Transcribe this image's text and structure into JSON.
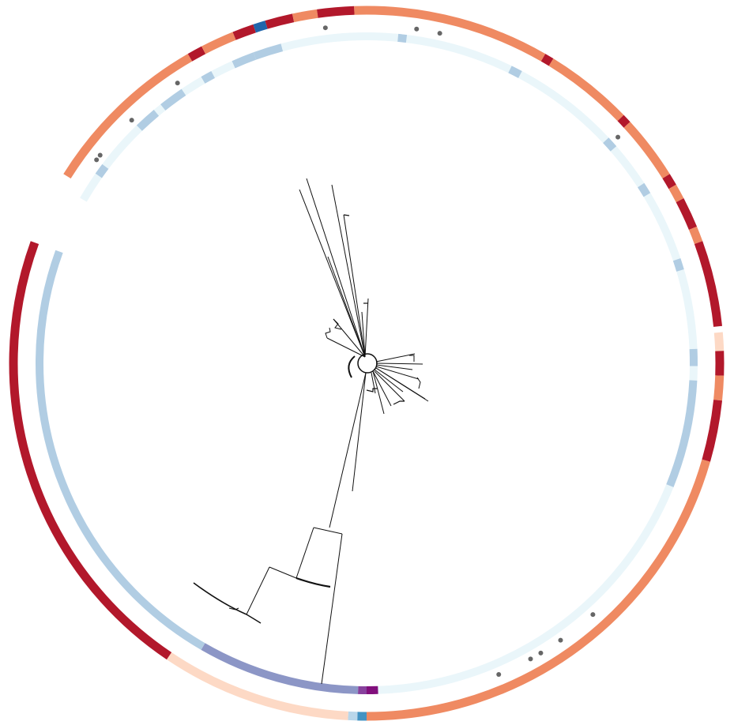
{
  "figure": {
    "type": "circular-phylogenetic-tree",
    "text_labels": [],
    "legend": null
  },
  "colors": {
    "background": "#ffffff",
    "branch": "#111111",
    "tip_marker": "#666666",
    "outer_ring_palette": {
      "light_salmon": "#fdd9c5",
      "salmon": "#ef8a62",
      "crimson": "#b2182b",
      "dark_blue": "#2166ac",
      "steel_blue": "#4393c3"
    },
    "inner_ring_palette": {
      "very_light_blue": "#eaf6fa",
      "light_blue": "#b1cde3",
      "periwinkle": "#8c96c6",
      "purple": "#88419d",
      "dark_purple": "#810f7c"
    }
  },
  "rings": {
    "outer_ring_segments": [
      {
        "start_deg": 0,
        "end_deg": 30,
        "color": "salmon"
      },
      {
        "start_deg": 30,
        "end_deg": 31.5,
        "color": "crimson"
      },
      {
        "start_deg": 31.5,
        "end_deg": 46,
        "color": "salmon"
      },
      {
        "start_deg": 46,
        "end_deg": 47.5,
        "color": "crimson"
      },
      {
        "start_deg": 47.5,
        "end_deg": 58,
        "color": "salmon"
      },
      {
        "start_deg": 58,
        "end_deg": 60,
        "color": "crimson"
      },
      {
        "start_deg": 60,
        "end_deg": 62.5,
        "color": "salmon"
      },
      {
        "start_deg": 62.5,
        "end_deg": 67.5,
        "color": "crimson"
      },
      {
        "start_deg": 67.5,
        "end_deg": 70,
        "color": "salmon"
      },
      {
        "start_deg": 70,
        "end_deg": 84,
        "color": "crimson"
      },
      {
        "start_deg": 85,
        "end_deg": 88,
        "color": "light_salmon"
      },
      {
        "start_deg": 88,
        "end_deg": 92,
        "color": "crimson"
      },
      {
        "start_deg": 92,
        "end_deg": 96,
        "color": "salmon"
      },
      {
        "start_deg": 96,
        "end_deg": 106,
        "color": "crimson"
      },
      {
        "start_deg": 106,
        "end_deg": 180,
        "color": "salmon"
      },
      {
        "start_deg": 180,
        "end_deg": 181.5,
        "color": "steel_blue"
      },
      {
        "start_deg": 181.5,
        "end_deg": 183,
        "color": "light_blue_fill"
      },
      {
        "start_deg": 183,
        "end_deg": 214,
        "color": "light_salmon"
      },
      {
        "start_deg": 214,
        "end_deg": 290,
        "color": "crimson"
      },
      {
        "start_deg": 302,
        "end_deg": 330,
        "color": "salmon"
      },
      {
        "start_deg": 330,
        "end_deg": 332.5,
        "color": "crimson"
      },
      {
        "start_deg": 332.5,
        "end_deg": 338,
        "color": "salmon"
      },
      {
        "start_deg": 338,
        "end_deg": 341.5,
        "color": "crimson"
      },
      {
        "start_deg": 341.5,
        "end_deg": 343.5,
        "color": "dark_blue"
      },
      {
        "start_deg": 343.5,
        "end_deg": 348,
        "color": "crimson"
      },
      {
        "start_deg": 348,
        "end_deg": 352,
        "color": "salmon"
      },
      {
        "start_deg": 352,
        "end_deg": 358,
        "color": "crimson"
      },
      {
        "start_deg": 358,
        "end_deg": 360,
        "color": "salmon"
      }
    ],
    "inner_ring_segments": [
      {
        "start_deg": 0,
        "end_deg": 87.5,
        "color": "very_light_blue"
      },
      {
        "start_deg": 87.5,
        "end_deg": 90.5,
        "color": "light_blue"
      },
      {
        "start_deg": 90.5,
        "end_deg": 93,
        "color": "very_light_blue"
      },
      {
        "start_deg": 93,
        "end_deg": 112,
        "color": "light_blue"
      },
      {
        "start_deg": 112,
        "end_deg": 178,
        "color": "very_light_blue"
      },
      {
        "start_deg": 178,
        "end_deg": 180,
        "color": "dark_purple"
      },
      {
        "start_deg": 180,
        "end_deg": 181.5,
        "color": "purple"
      },
      {
        "start_deg": 181.5,
        "end_deg": 210,
        "color": "periwinkle"
      },
      {
        "start_deg": 210,
        "end_deg": 290,
        "color": "light_blue"
      },
      {
        "start_deg": 300,
        "end_deg": 340,
        "color": "very_light_blue"
      },
      {
        "start_deg": 340,
        "end_deg": 345,
        "color": "light_blue"
      },
      {
        "start_deg": 345,
        "end_deg": 360,
        "color": "very_light_blue"
      }
    ],
    "inner_ring_accents": [
      {
        "start_deg": 5.5,
        "end_deg": 7,
        "color": "light_blue"
      },
      {
        "start_deg": 26,
        "end_deg": 28,
        "color": "light_blue"
      },
      {
        "start_deg": 47,
        "end_deg": 49,
        "color": "light_blue"
      },
      {
        "start_deg": 57,
        "end_deg": 59,
        "color": "light_blue"
      },
      {
        "start_deg": 71.5,
        "end_deg": 73.5,
        "color": "light_blue"
      },
      {
        "start_deg": 305,
        "end_deg": 307,
        "color": "light_blue"
      },
      {
        "start_deg": 316,
        "end_deg": 320,
        "color": "light_blue"
      },
      {
        "start_deg": 321.5,
        "end_deg": 326,
        "color": "light_blue"
      },
      {
        "start_deg": 330,
        "end_deg": 332,
        "color": "light_blue"
      },
      {
        "start_deg": 336,
        "end_deg": 340,
        "color": "light_blue"
      }
    ],
    "tip_markers_deg": [
      8.5,
      12.5,
      48,
      138,
      145,
      149,
      151,
      157,
      307,
      308,
      316,
      326,
      353
    ]
  },
  "tree": {
    "long_branches_deg": [
      [
        -22,
        0.85
      ],
      [
        -14,
        0.88
      ],
      [
        -7,
        0.78
      ],
      [
        2,
        0.82
      ],
      [
        -4,
        0.55
      ],
      [
        -11,
        0.6
      ],
      [
        -18,
        0.5
      ],
      [
        -25,
        0.42
      ],
      [
        5,
        0.3
      ],
      [
        -1,
        0.45
      ]
    ],
    "short_branches_deg": [
      [
        80,
        0.23
      ],
      [
        85,
        0.23
      ],
      [
        92,
        0.2
      ],
      [
        100,
        0.19
      ],
      [
        107,
        0.17
      ],
      [
        116,
        0.2
      ],
      [
        124,
        0.18
      ],
      [
        132,
        0.14
      ],
      [
        140,
        0.12
      ],
      [
        148,
        0.1
      ],
      [
        160,
        0.07
      ],
      [
        168,
        0.08
      ],
      [
        -50,
        0.12
      ],
      [
        -58,
        0.14
      ],
      [
        -65,
        0.13
      ]
    ]
  }
}
